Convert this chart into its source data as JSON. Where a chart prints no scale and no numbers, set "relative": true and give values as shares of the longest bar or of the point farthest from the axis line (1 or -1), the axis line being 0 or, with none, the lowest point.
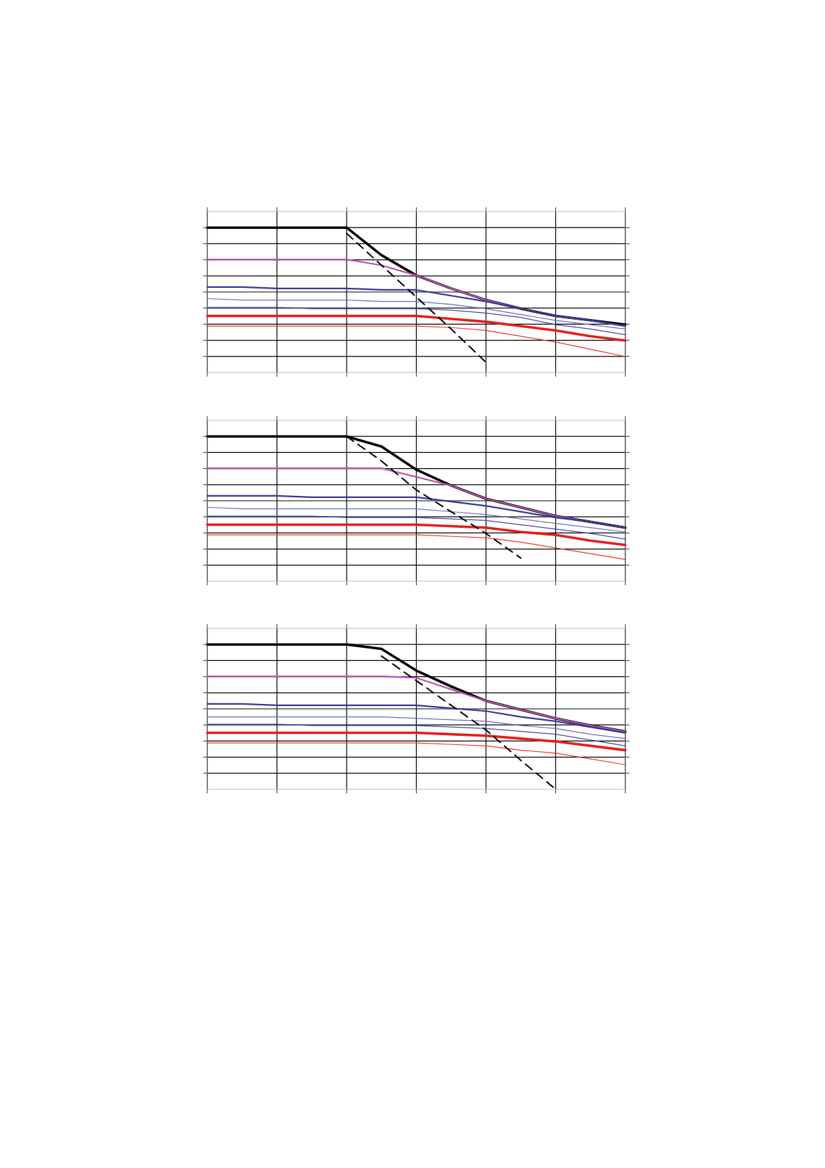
{
  "chart_data": [
    {
      "type": "line",
      "relative": true,
      "grid": true,
      "tick_labels": false,
      "marker": "none",
      "categories": [
        null,
        null,
        null,
        null,
        null,
        null,
        null,
        null,
        null,
        null,
        null,
        null,
        null
      ],
      "series": [
        {
          "color": "#000000",
          "values": [
            1,
            1,
            1,
            1,
            1,
            0.81,
            0.67,
            0.58,
            0.5,
            0.44,
            0.39,
            0.36,
            0.33
          ]
        },
        {
          "color": "#b455b0",
          "values": [
            0.78,
            0.78,
            0.78,
            0.78,
            0.78,
            0.74,
            0.67,
            0.58,
            0.5,
            0.44,
            0.39,
            0.36,
            0.32
          ]
        },
        {
          "color": "#33389a",
          "values": [
            0.59,
            0.59,
            0.58,
            0.58,
            0.58,
            0.57,
            0.57,
            0.53,
            0.49,
            0.44,
            0.39,
            0.36,
            0.32
          ]
        },
        {
          "color": "#6a6ac0",
          "values": [
            0.51,
            0.5,
            0.5,
            0.5,
            0.5,
            0.49,
            0.49,
            0.47,
            0.44,
            0.4,
            0.36,
            0.33,
            0.3
          ]
        },
        {
          "color": "#4545a5",
          "values": [
            0.45,
            0.45,
            0.45,
            0.44,
            0.44,
            0.44,
            0.44,
            0.43,
            0.41,
            0.38,
            0.33,
            0.3,
            0.26
          ]
        },
        {
          "color": "#e41e1a",
          "values": [
            0.39,
            0.39,
            0.39,
            0.39,
            0.39,
            0.39,
            0.39,
            0.37,
            0.35,
            0.32,
            0.29,
            0.25,
            0.22
          ]
        },
        {
          "color": "#e8342a",
          "values": [
            0.32,
            0.32,
            0.32,
            0.32,
            0.32,
            0.32,
            0.32,
            0.31,
            0.29,
            0.25,
            0.21,
            0.16,
            0.11
          ]
        },
        {
          "color": "#000000",
          "line_style": "dashed",
          "values": [
            null,
            null,
            null,
            null,
            0.96,
            0.74,
            0.52,
            0.3,
            0.07,
            null,
            null,
            null,
            null
          ]
        }
      ]
    },
    {
      "type": "line",
      "relative": true,
      "grid": true,
      "tick_labels": false,
      "marker": "none",
      "categories": [
        null,
        null,
        null,
        null,
        null,
        null,
        null,
        null,
        null,
        null,
        null,
        null,
        null
      ],
      "series": [
        {
          "color": "#000000",
          "values": [
            1,
            1,
            1,
            1,
            1,
            0.93,
            0.77,
            0.66,
            0.57,
            0.51,
            0.45,
            0.41,
            0.37
          ]
        },
        {
          "color": "#b455b0",
          "values": [
            0.78,
            0.78,
            0.78,
            0.78,
            0.78,
            0.78,
            0.72,
            0.66,
            0.57,
            0.51,
            0.45,
            0.41,
            0.37
          ]
        },
        {
          "color": "#33389a",
          "values": [
            0.59,
            0.59,
            0.59,
            0.58,
            0.58,
            0.58,
            0.58,
            0.55,
            0.52,
            0.48,
            0.44,
            0.41,
            0.37
          ]
        },
        {
          "color": "#6a6ac0",
          "values": [
            0.51,
            0.5,
            0.5,
            0.5,
            0.5,
            0.5,
            0.5,
            0.48,
            0.46,
            0.43,
            0.4,
            0.37,
            0.34
          ]
        },
        {
          "color": "#4545a5",
          "values": [
            0.45,
            0.45,
            0.45,
            0.45,
            0.44,
            0.44,
            0.44,
            0.43,
            0.42,
            0.39,
            0.36,
            0.33,
            0.29
          ]
        },
        {
          "color": "#e41e1a",
          "values": [
            0.39,
            0.39,
            0.39,
            0.39,
            0.39,
            0.39,
            0.39,
            0.38,
            0.37,
            0.34,
            0.32,
            0.28,
            0.25
          ]
        },
        {
          "color": "#e8342a",
          "values": [
            0.32,
            0.32,
            0.32,
            0.32,
            0.32,
            0.32,
            0.32,
            0.31,
            0.3,
            0.27,
            0.23,
            0.19,
            0.15
          ]
        },
        {
          "color": "#000000",
          "line_style": "dashed",
          "values": [
            null,
            null,
            null,
            null,
            1,
            0.83,
            0.63,
            0.48,
            0.33,
            0.16,
            null,
            null,
            null
          ]
        }
      ]
    },
    {
      "type": "line",
      "relative": true,
      "grid": true,
      "tick_labels": false,
      "marker": "none",
      "categories": [
        null,
        null,
        null,
        null,
        null,
        null,
        null,
        null,
        null,
        null,
        null,
        null,
        null
      ],
      "series": [
        {
          "color": "#000000",
          "values": [
            1,
            1,
            1,
            1,
            1,
            0.97,
            0.82,
            0.71,
            0.61,
            0.55,
            0.49,
            0.44,
            0.4
          ]
        },
        {
          "color": "#b455b0",
          "values": [
            0.78,
            0.78,
            0.78,
            0.78,
            0.78,
            0.78,
            0.77,
            0.69,
            0.61,
            0.55,
            0.49,
            0.44,
            0.4
          ]
        },
        {
          "color": "#33389a",
          "values": [
            0.59,
            0.59,
            0.58,
            0.58,
            0.58,
            0.58,
            0.58,
            0.56,
            0.54,
            0.5,
            0.47,
            0.43,
            0.39
          ]
        },
        {
          "color": "#6a6ac0",
          "values": [
            0.5,
            0.5,
            0.5,
            0.5,
            0.5,
            0.5,
            0.49,
            0.48,
            0.47,
            0.44,
            0.42,
            0.38,
            0.35
          ]
        },
        {
          "color": "#4545a5",
          "values": [
            0.45,
            0.45,
            0.45,
            0.44,
            0.44,
            0.44,
            0.44,
            0.43,
            0.42,
            0.4,
            0.38,
            0.34,
            0.3
          ]
        },
        {
          "color": "#e41e1a",
          "values": [
            0.39,
            0.39,
            0.39,
            0.39,
            0.39,
            0.39,
            0.39,
            0.38,
            0.37,
            0.35,
            0.33,
            0.3,
            0.27
          ]
        },
        {
          "color": "#e8342a",
          "values": [
            0.32,
            0.32,
            0.32,
            0.32,
            0.32,
            0.32,
            0.32,
            0.31,
            0.3,
            0.27,
            0.25,
            0.21,
            0.17
          ]
        },
        {
          "color": "#000000",
          "line_style": "dashed",
          "values": [
            null,
            null,
            null,
            null,
            null,
            0.92,
            0.75,
            0.58,
            0.41,
            0.2,
            0,
            null,
            null
          ]
        }
      ]
    }
  ]
}
